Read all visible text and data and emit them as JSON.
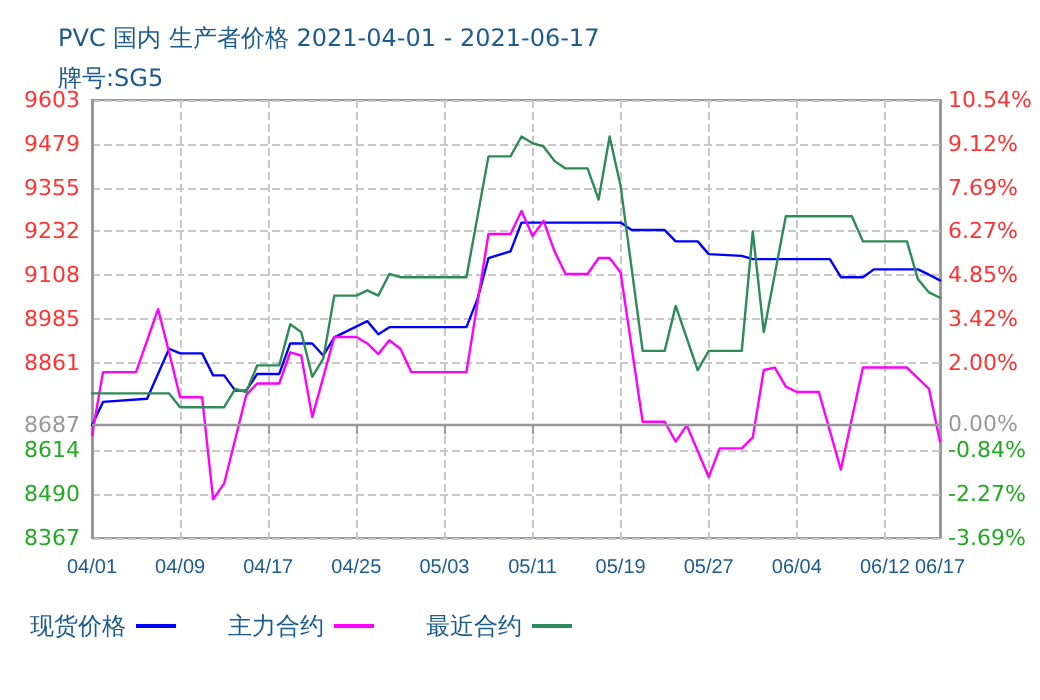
{
  "chart_data": {
    "type": "line",
    "title": "PVC 国内 生产者价格 2021-04-01 - 2021-06-17",
    "subtitle": "牌号:SG5",
    "xlim": [
      "2021-04-01",
      "2021-06-17"
    ],
    "xticks": [
      {
        "value": "2021-04-01",
        "label": "04/01"
      },
      {
        "value": "2021-04-09",
        "label": "04/09"
      },
      {
        "value": "2021-04-17",
        "label": "04/17"
      },
      {
        "value": "2021-04-25",
        "label": "04/25"
      },
      {
        "value": "2021-05-03",
        "label": "05/03"
      },
      {
        "value": "2021-05-11",
        "label": "05/11"
      },
      {
        "value": "2021-05-19",
        "label": "05/19"
      },
      {
        "value": "2021-05-27",
        "label": "05/27"
      },
      {
        "value": "2021-06-04",
        "label": "06/04"
      },
      {
        "value": "2021-06-12",
        "label": "06/12"
      },
      {
        "value": "2021-06-17",
        "label": "06/17"
      }
    ],
    "ylim": [
      8367,
      9603
    ],
    "yticks": [
      8367,
      8490,
      8614,
      8687,
      8861,
      8985,
      9108,
      9232,
      9355,
      9479,
      9603
    ],
    "y2lim": [
      -3.69,
      10.54
    ],
    "y2ticks": [
      {
        "value": -3.69,
        "label": "-3.69%"
      },
      {
        "value": -2.27,
        "label": "-2.27%"
      },
      {
        "value": -0.84,
        "label": "-0.84%"
      },
      {
        "value": 0,
        "label": "0.00%"
      },
      {
        "value": 2.0,
        "label": "2.00%"
      },
      {
        "value": 3.42,
        "label": "3.42%"
      },
      {
        "value": 4.85,
        "label": "4.85%"
      },
      {
        "value": 6.27,
        "label": "6.27%"
      },
      {
        "value": 7.69,
        "label": "7.69%"
      },
      {
        "value": 9.12,
        "label": "9.12%"
      },
      {
        "value": 10.54,
        "label": "10.54%"
      }
    ],
    "ref_lines": [
      {
        "axis": "y",
        "value": 8687,
        "color": "#999999"
      }
    ],
    "grid": true,
    "legend": "bottom",
    "marker": "none",
    "line_style": "solid",
    "series": [
      {
        "name": "现货价格",
        "color": "#0000ff",
        "x": [
          "2021-04-01",
          "2021-04-02",
          "2021-04-06",
          "2021-04-08",
          "2021-04-09",
          "2021-04-11",
          "2021-04-12",
          "2021-04-13",
          "2021-04-14",
          "2021-04-15",
          "2021-04-16",
          "2021-04-18",
          "2021-04-19",
          "2021-04-21",
          "2021-04-22",
          "2021-04-23",
          "2021-04-26",
          "2021-04-27",
          "2021-04-28",
          "2021-05-05",
          "2021-05-06",
          "2021-05-07",
          "2021-05-09",
          "2021-05-10",
          "2021-05-19",
          "2021-05-20",
          "2021-05-23",
          "2021-05-24",
          "2021-05-26",
          "2021-05-27",
          "2021-05-30",
          "2021-05-31",
          "2021-06-07",
          "2021-06-08",
          "2021-06-10",
          "2021-06-11",
          "2021-06-15",
          "2021-06-16",
          "2021-06-17"
        ],
        "values": [
          8685,
          8751,
          8760,
          8901,
          8888,
          8888,
          8826,
          8826,
          8783,
          8783,
          8830,
          8830,
          8916,
          8916,
          8882,
          8933,
          8979,
          8942,
          8962,
          8962,
          9041,
          9157,
          9176,
          9257,
          9257,
          9236,
          9236,
          9204,
          9204,
          9168,
          9163,
          9154,
          9154,
          9103,
          9103,
          9125,
          9125,
          9110,
          9094
        ]
      },
      {
        "name": "主力合约",
        "color": "#ff00ff",
        "x": [
          "2021-04-01",
          "2021-04-02",
          "2021-04-05",
          "2021-04-07",
          "2021-04-08",
          "2021-04-09",
          "2021-04-11",
          "2021-04-12",
          "2021-04-13",
          "2021-04-15",
          "2021-04-16",
          "2021-04-18",
          "2021-04-19",
          "2021-04-20",
          "2021-04-21",
          "2021-04-23",
          "2021-04-25",
          "2021-04-26",
          "2021-04-27",
          "2021-04-28",
          "2021-04-29",
          "2021-04-30",
          "2021-05-05",
          "2021-05-07",
          "2021-05-09",
          "2021-05-10",
          "2021-05-11",
          "2021-05-12",
          "2021-05-13",
          "2021-05-14",
          "2021-05-16",
          "2021-05-17",
          "2021-05-18",
          "2021-05-19",
          "2021-05-21",
          "2021-05-23",
          "2021-05-24",
          "2021-05-25",
          "2021-05-27",
          "2021-05-28",
          "2021-05-30",
          "2021-05-31",
          "2021-06-01",
          "2021-06-02",
          "2021-06-03",
          "2021-06-04",
          "2021-06-06",
          "2021-06-08",
          "2021-06-10",
          "2021-06-14",
          "2021-06-16",
          "2021-06-17"
        ],
        "values": [
          8657,
          8835,
          8835,
          9013,
          8891,
          8764,
          8764,
          8476,
          8521,
          8770,
          8803,
          8803,
          8891,
          8882,
          8708,
          8934,
          8934,
          8916,
          8886,
          8925,
          8901,
          8835,
          8835,
          9225,
          9225,
          9290,
          9219,
          9262,
          9176,
          9112,
          9112,
          9157,
          9157,
          9116,
          8695,
          8695,
          8639,
          8685,
          8539,
          8620,
          8620,
          8651,
          8841,
          8848,
          8794,
          8779,
          8779,
          8560,
          8848,
          8848,
          8788,
          8639
        ]
      },
      {
        "name": "最近合约",
        "color": "#2e8b57",
        "x": [
          "2021-04-01",
          "2021-04-08",
          "2021-04-09",
          "2021-04-13",
          "2021-04-14",
          "2021-04-15",
          "2021-04-16",
          "2021-04-18",
          "2021-04-19",
          "2021-04-20",
          "2021-04-21",
          "2021-04-22",
          "2021-04-23",
          "2021-04-25",
          "2021-04-26",
          "2021-04-27",
          "2021-04-28",
          "2021-04-29",
          "2021-05-05",
          "2021-05-07",
          "2021-05-09",
          "2021-05-10",
          "2021-05-11",
          "2021-05-12",
          "2021-05-13",
          "2021-05-14",
          "2021-05-16",
          "2021-05-17",
          "2021-05-18",
          "2021-05-19",
          "2021-05-21",
          "2021-05-23",
          "2021-05-24",
          "2021-05-26",
          "2021-05-27",
          "2021-05-30",
          "2021-05-31",
          "2021-06-01",
          "2021-06-03",
          "2021-06-09",
          "2021-06-10",
          "2021-06-14",
          "2021-06-15",
          "2021-06-16",
          "2021-06-17"
        ],
        "values": [
          8775,
          8775,
          8736,
          8736,
          8788,
          8779,
          8854,
          8854,
          8970,
          8948,
          8822,
          8873,
          9051,
          9051,
          9066,
          9051,
          9112,
          9103,
          9103,
          9444,
          9444,
          9500,
          9481,
          9472,
          9431,
          9410,
          9410,
          9322,
          9500,
          9360,
          8895,
          8895,
          9022,
          8841,
          8895,
          8895,
          9232,
          8948,
          9275,
          9275,
          9204,
          9204,
          9097,
          9060,
          9045
        ]
      }
    ]
  }
}
